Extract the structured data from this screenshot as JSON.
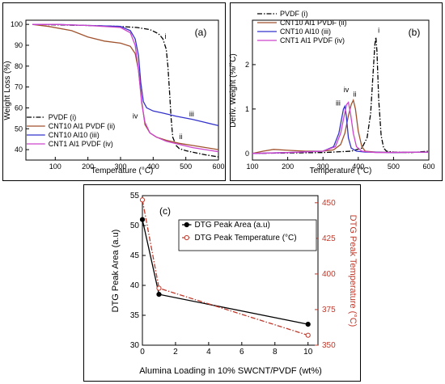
{
  "chart_data": [
    {
      "panel": "(a)",
      "type": "line",
      "xlabel": "Temperature (°C)",
      "ylabel": "Weight Loss (%)",
      "xlim": [
        10,
        600
      ],
      "ylim": [
        35,
        102
      ],
      "xticks": [
        100,
        200,
        300,
        400,
        500,
        600
      ],
      "yticks": [
        40,
        50,
        60,
        70,
        80,
        90,
        100
      ],
      "legend_position": "bottom-left",
      "annotations": [
        {
          "label": "i",
          "x": 438,
          "y": 93
        },
        {
          "label": "iii",
          "x": 518,
          "y": 56
        },
        {
          "label": "ii",
          "x": 485,
          "y": 45
        },
        {
          "label": "iv",
          "x": 345,
          "y": 55
        }
      ],
      "series": [
        {
          "name": "PVDF (i)",
          "color": "#000000",
          "dash": "dashdot",
          "x": [
            30,
            100,
            200,
            300,
            350,
            390,
            410,
            420,
            430,
            440,
            445,
            450,
            455,
            460,
            470,
            480,
            500,
            530,
            560,
            600
          ],
          "y": [
            100,
            99.8,
            99.5,
            99,
            98.5,
            97.5,
            96,
            95,
            93,
            88,
            80,
            68,
            55,
            46,
            42,
            40.5,
            39.5,
            38.5,
            37.5,
            36.5
          ]
        },
        {
          "name": "CNT10 Al1 PVDF (ii)",
          "color": "#a0522d",
          "dash": "solid",
          "x": [
            30,
            80,
            150,
            200,
            250,
            300,
            330,
            345,
            355,
            365,
            375,
            390,
            410,
            440,
            480,
            520,
            560,
            600
          ],
          "y": [
            100,
            99,
            97,
            94,
            92,
            91,
            89.5,
            86,
            78,
            63,
            52,
            48,
            46,
            44.5,
            43,
            42,
            41,
            40
          ]
        },
        {
          "name": "CNT10 Al10 (iii)",
          "color": "#3333cc",
          "dash": "solid",
          "x": [
            30,
            100,
            200,
            300,
            330,
            345,
            355,
            362,
            370,
            380,
            400,
            430,
            470,
            520,
            560,
            600
          ],
          "y": [
            100,
            100,
            99.5,
            99,
            97,
            93,
            85,
            72,
            63,
            60,
            58.5,
            57.5,
            56,
            54.5,
            53,
            51.5
          ]
        },
        {
          "name": "CNT1 Al1 PVDF (iv)",
          "color": "#cc44cc",
          "dash": "solid",
          "x": [
            30,
            100,
            200,
            300,
            330,
            345,
            355,
            365,
            375,
            390,
            410,
            440,
            480,
            520,
            560,
            600
          ],
          "y": [
            100,
            100,
            99.5,
            98.5,
            96,
            90,
            78,
            62,
            53,
            48,
            46,
            44,
            42.5,
            41,
            40,
            39
          ]
        }
      ]
    },
    {
      "panel": "(b)",
      "type": "line",
      "xlabel": "Temperature (°C)",
      "ylabel": "Deriv. Weight (%/°C)",
      "xlim": [
        100,
        600
      ],
      "ylim": [
        -0.15,
        3.0
      ],
      "xticks": [
        100,
        200,
        300,
        400,
        500,
        600
      ],
      "yticks": [
        0,
        1,
        2
      ],
      "legend_position": "top-left",
      "annotations": [
        {
          "label": "i",
          "x": 458,
          "y": 2.72
        },
        {
          "label": "ii",
          "x": 390,
          "y": 1.28
        },
        {
          "label": "iii",
          "x": 343,
          "y": 1.08
        },
        {
          "label": "iv",
          "x": 366,
          "y": 1.38
        }
      ],
      "series": [
        {
          "name": "PVDF (i)",
          "color": "#000000",
          "dash": "dashdot",
          "x": [
            100,
            200,
            300,
            380,
            410,
            425,
            435,
            442,
            447,
            450,
            453,
            458,
            465,
            472,
            480,
            500,
            550,
            600
          ],
          "y": [
            0.0,
            0.01,
            0.02,
            0.05,
            0.12,
            0.35,
            0.9,
            1.8,
            2.45,
            2.62,
            2.3,
            1.2,
            0.4,
            0.12,
            0.05,
            0.03,
            0.02,
            0.05
          ]
        },
        {
          "name": "CNT10 Al1 PVDF (ii)",
          "color": "#a0522d",
          "dash": "solid",
          "x": [
            100,
            130,
            160,
            200,
            250,
            300,
            330,
            350,
            362,
            372,
            380,
            386,
            392,
            400,
            410,
            420,
            450,
            500,
            600
          ],
          "y": [
            0.0,
            0.05,
            0.09,
            0.07,
            0.05,
            0.05,
            0.08,
            0.2,
            0.45,
            0.85,
            1.1,
            1.2,
            1.0,
            0.5,
            0.15,
            0.05,
            0.03,
            0.02,
            0.03
          ]
        },
        {
          "name": "CNT10 Al10 (iii)",
          "color": "#3333cc",
          "dash": "solid",
          "x": [
            100,
            200,
            300,
            330,
            345,
            352,
            358,
            362,
            366,
            372,
            380,
            395,
            420,
            500,
            600
          ],
          "y": [
            0.0,
            0.02,
            0.05,
            0.15,
            0.45,
            0.75,
            1.0,
            1.06,
            0.85,
            0.35,
            0.12,
            0.05,
            0.03,
            0.02,
            0.03
          ]
        },
        {
          "name": "CNT1 Al1 PVDF (iv)",
          "color": "#cc44cc",
          "dash": "solid",
          "x": [
            100,
            200,
            300,
            335,
            350,
            360,
            367,
            372,
            378,
            386,
            395,
            410,
            450,
            600
          ],
          "y": [
            0.0,
            0.02,
            0.05,
            0.15,
            0.45,
            0.85,
            1.1,
            1.15,
            0.9,
            0.45,
            0.15,
            0.05,
            0.02,
            0.03
          ]
        }
      ]
    },
    {
      "panel": "(c)",
      "type": "line",
      "xlabel": "Alumina Loading in 10% SWCNT/PVDF (wt%)",
      "ylabel": "DTG Peak Area (a.u)",
      "y2label": "DTG Peak Temperature (°C)",
      "xlim": [
        0,
        10.6
      ],
      "ylim": [
        30,
        55
      ],
      "y2lim": [
        350,
        455
      ],
      "xticks": [
        0,
        2,
        4,
        6,
        8,
        10
      ],
      "yticks": [
        30,
        35,
        40,
        45,
        50,
        55
      ],
      "y2ticks": [
        350,
        375,
        400,
        425,
        450
      ],
      "legend_position": "top-center",
      "series": [
        {
          "name": "DTG Peak Area (a.u)",
          "color": "#000000",
          "dash": "solid",
          "marker": "filled-circle",
          "axis": "left",
          "x": [
            0,
            1,
            10
          ],
          "y": [
            51.0,
            38.5,
            33.5
          ]
        },
        {
          "name": "DTG Peak Temperature (°C)",
          "color": "#c0392b",
          "dash": "dashdot",
          "marker": "open-circle",
          "axis": "right",
          "x": [
            0,
            1,
            10
          ],
          "y": [
            452,
            390,
            357
          ]
        }
      ]
    }
  ]
}
